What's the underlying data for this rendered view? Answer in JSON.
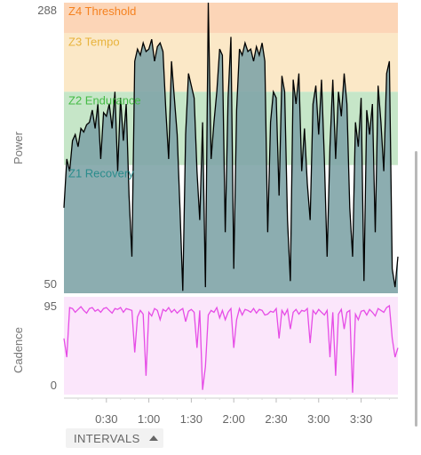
{
  "colors": {
    "power_line": "#000000",
    "power_fill": "#7fa4a7",
    "cadence_line": "#e64ce6",
    "cadence_fill": "#fbe6fb",
    "zone4": "#fcd5b7",
    "zone3": "#fbe8c7",
    "zone2": "#c6e6c8",
    "zone4_text": "#f58220",
    "zone3_text": "#e8b33c",
    "zone2_text": "#44bb44",
    "zone1_text": "#2a8c8c"
  },
  "chart_data": [
    {
      "type": "area",
      "ylabel": "Power",
      "ylim": [
        50,
        288
      ],
      "y_ticks": [
        "288",
        "50"
      ],
      "x_ticks": [
        "0:30",
        "1:00",
        "1:30",
        "2:00",
        "2:30",
        "3:00",
        "3:30"
      ],
      "x_tick_minutes": [
        30,
        60,
        90,
        120,
        150,
        180,
        210
      ],
      "xlim_minutes": [
        0,
        236
      ],
      "zones": [
        {
          "name": "Z4 Threshold",
          "from": 263,
          "to": 288
        },
        {
          "name": "Z3 Tempo",
          "from": 215,
          "to": 263
        },
        {
          "name": "Z2 Endurance",
          "from": 155,
          "to": 215
        },
        {
          "name": "Z1 Recovery",
          "from": 50,
          "to": 155
        }
      ],
      "x": [
        0,
        2,
        4,
        6,
        8,
        10,
        12,
        14,
        16,
        18,
        20,
        22,
        24,
        26,
        28,
        30,
        32,
        34,
        36,
        38,
        40,
        42,
        44,
        46,
        48,
        50,
        52,
        54,
        56,
        58,
        60,
        62,
        64,
        66,
        68,
        70,
        72,
        74,
        76,
        78,
        80,
        82,
        84,
        86,
        88,
        90,
        92,
        94,
        96,
        98,
        100,
        102,
        104,
        106,
        108,
        110,
        112,
        114,
        116,
        118,
        120,
        122,
        124,
        126,
        128,
        130,
        132,
        134,
        136,
        138,
        140,
        142,
        144,
        146,
        148,
        150,
        152,
        154,
        156,
        158,
        160,
        162,
        164,
        166,
        168,
        170,
        172,
        174,
        176,
        178,
        180,
        182,
        184,
        186,
        188,
        190,
        192,
        194,
        196,
        198,
        200,
        202,
        204,
        206,
        208,
        210,
        212,
        214,
        216,
        218,
        220,
        222,
        224,
        226,
        228,
        230,
        232,
        234,
        236
      ],
      "values": [
        120,
        160,
        150,
        175,
        180,
        170,
        185,
        182,
        188,
        190,
        200,
        185,
        205,
        160,
        198,
        195,
        205,
        185,
        215,
        150,
        210,
        175,
        205,
        130,
        80,
        240,
        250,
        245,
        255,
        248,
        250,
        258,
        240,
        252,
        255,
        248,
        200,
        160,
        240,
        210,
        180,
        120,
        52,
        180,
        230,
        220,
        210,
        150,
        110,
        190,
        55,
        288,
        160,
        190,
        215,
        250,
        245,
        100,
        210,
        260,
        70,
        200,
        250,
        245,
        255,
        248,
        250,
        240,
        252,
        245,
        255,
        240,
        100,
        190,
        215,
        210,
        130,
        228,
        215,
        110,
        60,
        225,
        205,
        230,
        150,
        185,
        140,
        110,
        205,
        220,
        180,
        225,
        160,
        80,
        170,
        225,
        160,
        215,
        195,
        230,
        205,
        120,
        80,
        190,
        170,
        210,
        60,
        200,
        180,
        205,
        100,
        220,
        190,
        150,
        230,
        240,
        70,
        55,
        80
      ]
    },
    {
      "type": "line",
      "ylabel": "Cadence",
      "ylim": [
        0,
        95
      ],
      "y_ticks": [
        "95",
        "0"
      ],
      "x": [
        0,
        2,
        4,
        6,
        8,
        10,
        12,
        14,
        16,
        18,
        20,
        22,
        24,
        26,
        28,
        30,
        32,
        34,
        36,
        38,
        40,
        42,
        44,
        46,
        48,
        50,
        52,
        54,
        56,
        58,
        60,
        62,
        64,
        66,
        68,
        70,
        72,
        74,
        76,
        78,
        80,
        82,
        84,
        86,
        88,
        90,
        92,
        94,
        96,
        98,
        100,
        102,
        104,
        106,
        108,
        110,
        112,
        114,
        116,
        118,
        120,
        122,
        124,
        126,
        128,
        130,
        132,
        134,
        136,
        138,
        140,
        142,
        144,
        146,
        148,
        150,
        152,
        154,
        156,
        158,
        160,
        162,
        164,
        166,
        168,
        170,
        172,
        174,
        176,
        178,
        180,
        182,
        184,
        186,
        188,
        190,
        192,
        194,
        196,
        198,
        200,
        202,
        204,
        206,
        208,
        210,
        212,
        214,
        216,
        218,
        220,
        222,
        224,
        226,
        228,
        230,
        232,
        234,
        236
      ],
      "values": [
        60,
        40,
        93,
        92,
        88,
        91,
        94,
        90,
        87,
        92,
        93,
        89,
        91,
        88,
        92,
        93,
        90,
        87,
        92,
        91,
        93,
        88,
        92,
        91,
        90,
        45,
        83,
        90,
        86,
        20,
        88,
        84,
        92,
        90,
        80,
        91,
        89,
        93,
        88,
        91,
        87,
        90,
        92,
        78,
        89,
        91,
        88,
        50,
        90,
        5,
        30,
        85,
        90,
        88,
        93,
        82,
        90,
        80,
        88,
        92,
        50,
        80,
        92,
        85,
        91,
        90,
        88,
        92,
        87,
        91,
        90,
        85,
        86,
        89,
        88,
        92,
        60,
        90,
        85,
        91,
        70,
        88,
        91,
        86,
        90,
        89,
        92,
        55,
        90,
        86,
        91,
        88,
        85,
        90,
        40,
        88,
        20,
        86,
        91,
        70,
        88,
        90,
        2,
        86,
        80,
        89,
        90,
        85,
        91,
        88,
        84,
        92,
        90,
        88,
        93,
        95,
        60,
        40,
        50
      ]
    }
  ]
}
